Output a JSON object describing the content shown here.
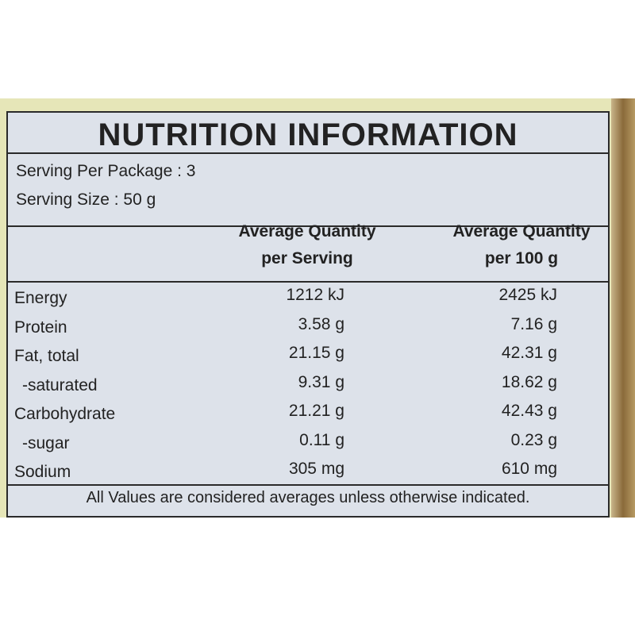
{
  "header": {
    "title": "NUTRITION INFORMATION"
  },
  "serving": [
    "Serving Per Package : 3",
    "Serving Size : 50 g"
  ],
  "table": {
    "columns": [
      {
        "lines": [
          "Average Quantity",
          "per Serving"
        ]
      },
      {
        "lines": [
          "Average Quantity",
          "per 100 g"
        ]
      }
    ],
    "rows": [
      [
        "Energy",
        "1212 kJ",
        "2425 kJ"
      ],
      [
        "Protein",
        "3.58 g",
        "7.16 g"
      ],
      [
        "Fat, total",
        "21.15 g",
        "42.31 g"
      ],
      [
        "-saturated",
        "9.31 g",
        "18.62 g"
      ],
      [
        "Carbohydrate",
        "21.21 g",
        "42.43 g"
      ],
      [
        "-sugar",
        "0.11 g",
        "0.23 g"
      ],
      [
        "Sodium",
        "305 mg",
        "610 mg"
      ]
    ]
  },
  "footer": "All Values are considered averages unless otherwise indicated."
}
